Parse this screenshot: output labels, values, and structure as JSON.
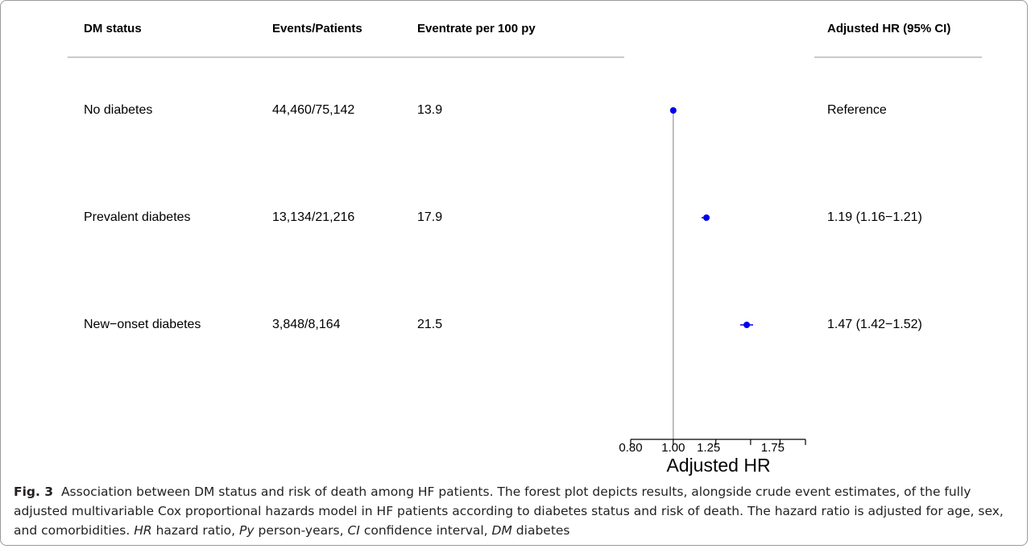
{
  "chart_data": {
    "type": "forest",
    "columns": [
      "DM status",
      "Events/Patients",
      "Eventrate per 100 py",
      "Adjusted HR (95% CI)"
    ],
    "categories": [
      "No diabetes",
      "Prevalent diabetes",
      "New−onset diabetes"
    ],
    "events": [
      "44,460/75,142",
      "13,134/21,216",
      "3,848/8,164"
    ],
    "rates": [
      13.9,
      17.9,
      21.5
    ],
    "values": [
      1,
      1.19,
      1.47
    ],
    "lower": [
      null,
      1.16,
      1.42
    ],
    "upper": [
      null,
      1.21,
      1.52
    ],
    "value_labels": [
      "Reference",
      "1.19 (1.16−1.21)",
      "1.47 (1.42−1.52)"
    ],
    "color": "#0000ee",
    "reference_line": 1,
    "xlabel": "Adjusted HR",
    "xlim": [
      0.8,
      2
    ],
    "xscale": "log",
    "xticks": [
      {
        "value": 0.8,
        "label": "0.80"
      },
      {
        "value": 1,
        "label": "1.00"
      },
      1.25,
      {
        "value": 1.5,
        "label": null
      },
      1.75,
      {
        "value": 2,
        "label": null
      }
    ]
  },
  "caption": {
    "label": "Fig. 3",
    "text": "Association between DM status and risk of death among HF patients. The forest plot depicts results, alongside crude event estimates, of the fully adjusted multivariable Cox proportional hazards model in HF patients according to diabetes status and risk of death. The hazard ratio is adjusted for age, sex, and comorbidities.",
    "abbreviations": [
      {
        "term": "HR",
        "definition": "hazard ratio,"
      },
      {
        "term": "Py",
        "definition": "person-years,"
      },
      {
        "term": "CI",
        "definition": "confidence interval,"
      },
      {
        "term": "DM",
        "definition": "diabetes"
      }
    ]
  }
}
